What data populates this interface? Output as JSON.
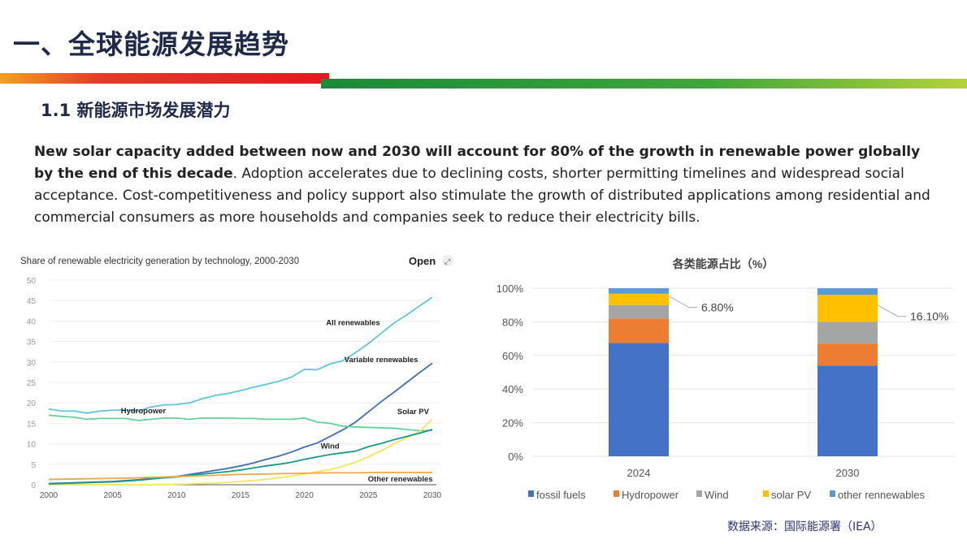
{
  "header": {
    "title": "一、全球能源发展趋势",
    "subtitle": "1.1 新能源市场发展潜力"
  },
  "paragraph": {
    "bold": "New solar capacity added between now and 2030 will account for 80% of the growth in renewable power globally by the end of this decade",
    "rest": ". Adoption accelerates due to declining costs, shorter permitting timelines and widespread social acceptance. Cost-competitiveness and policy support also stimulate the growth of distributed applications among residential and commercial consumers as more households and companies seek to reduce their electricity bills."
  },
  "open_label": "Open",
  "source": "数据来源：国际能源署（IEA）",
  "chart_data": [
    {
      "type": "line",
      "title": "Share of renewable electricity generation by technology, 2000-2030",
      "xlim": [
        2000,
        2030
      ],
      "ylim": [
        0,
        50
      ],
      "x_ticks": [
        2000,
        2005,
        2010,
        2015,
        2020,
        2025,
        2030
      ],
      "y_ticks": [
        0,
        5,
        10,
        15,
        20,
        25,
        30,
        35,
        40,
        45,
        50
      ],
      "grid": true,
      "legend": "inline labels",
      "series": [
        {
          "name": "All renewables",
          "color": "#5cc6de",
          "values": [
            18.5,
            18,
            18,
            17.5,
            18,
            18.2,
            18.3,
            18,
            19,
            19.5,
            19.6,
            20,
            21,
            21.8,
            22.3,
            23,
            23.8,
            24.5,
            25.3,
            26.3,
            28.2,
            28.1,
            29.5,
            30.3,
            32.3,
            34.5,
            37,
            39.5,
            41.5,
            43.7,
            45.8
          ]
        },
        {
          "name": "Variable renewables",
          "color": "#3f6db8",
          "values": [
            0.3,
            0.4,
            0.5,
            0.6,
            0.7,
            0.8,
            1,
            1.2,
            1.5,
            1.8,
            2,
            2.5,
            3,
            3.5,
            4,
            4.6,
            5.3,
            6.2,
            7,
            8,
            9.2,
            10.2,
            11.8,
            13.4,
            15.3,
            17.8,
            20.3,
            22.6,
            25,
            27.4,
            29.7
          ]
        },
        {
          "name": "Hydropower",
          "color": "#62d49a",
          "values": [
            17,
            16.7,
            16.5,
            16,
            16.2,
            16.2,
            16.2,
            15.7,
            16,
            16.3,
            16.3,
            16,
            16.3,
            16.3,
            16.3,
            16.2,
            16.2,
            16,
            16,
            16,
            16.3,
            15.3,
            15,
            14.3,
            14.1,
            14,
            13.9,
            13.8,
            13.5,
            13.2,
            13.3
          ]
        },
        {
          "name": "Solar PV",
          "color": "#f3e65a",
          "values": [
            0,
            0,
            0,
            0,
            0,
            0,
            0,
            0,
            0,
            0.05,
            0.1,
            0.2,
            0.3,
            0.4,
            0.6,
            0.8,
            1,
            1.3,
            1.7,
            2.1,
            2.6,
            3.2,
            3.7,
            4.5,
            5.5,
            6.8,
            8.3,
            10,
            11.5,
            13,
            16
          ]
        },
        {
          "name": "Wind",
          "color": "#17998b",
          "values": [
            0.2,
            0.3,
            0.4,
            0.5,
            0.6,
            0.7,
            0.9,
            1.1,
            1.4,
            1.7,
            1.9,
            2.3,
            2.6,
            2.9,
            3.2,
            3.6,
            4.1,
            4.6,
            5,
            5.5,
            6.2,
            6.8,
            7.4,
            7.8,
            8.2,
            9.3,
            10.1,
            11,
            11.8,
            12.6,
            13.5
          ]
        },
        {
          "name": "Other renewables",
          "color": "#f0a848",
          "values": [
            1.3,
            1.35,
            1.4,
            1.45,
            1.5,
            1.55,
            1.6,
            1.7,
            1.8,
            1.9,
            2,
            2.1,
            2.2,
            2.3,
            2.4,
            2.5,
            2.55,
            2.6,
            2.7,
            2.75,
            2.8,
            2.85,
            2.9,
            2.9,
            2.9,
            2.95,
            3,
            3,
            3,
            3,
            3
          ]
        }
      ]
    },
    {
      "type": "bar",
      "stacked": true,
      "title": "各类能源占比（%）",
      "categories": [
        "2024",
        "2030"
      ],
      "ylim": [
        0,
        100
      ],
      "y_ticks": [
        "0%",
        "20%",
        "40%",
        "60%",
        "80%",
        "100%"
      ],
      "legend": "bottom",
      "grid": true,
      "series": [
        {
          "name": "fossil fuels",
          "color": "#4472c4",
          "values": [
            67.5,
            54
          ]
        },
        {
          "name": "Hydropower",
          "color": "#ed7d31",
          "values": [
            14.5,
            13
          ]
        },
        {
          "name": "Wind",
          "color": "#a5a5a5",
          "values": [
            8,
            13
          ]
        },
        {
          "name": "solar PV",
          "color": "#ffc000",
          "values": [
            6.8,
            16.1
          ]
        },
        {
          "name": "other rennewables",
          "color": "#5b9bd5",
          "values": [
            3.2,
            3.9
          ]
        }
      ],
      "annotations": [
        "6.80%",
        "16.10%"
      ]
    }
  ]
}
